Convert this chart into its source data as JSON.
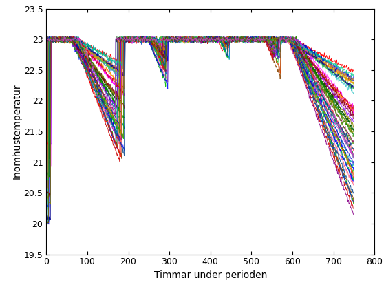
{
  "xlabel": "Timmar under perioden",
  "ylabel": "Inomhustemperatur",
  "xlim": [
    0,
    800
  ],
  "ylim": [
    19.5,
    23.5
  ],
  "xticks": [
    0,
    100,
    200,
    300,
    400,
    500,
    600,
    700,
    800
  ],
  "yticks": [
    19.5,
    20,
    20.5,
    21,
    21.5,
    22,
    22.5,
    23,
    23.5
  ],
  "ytick_labels": [
    "19.5",
    "20",
    "20.5",
    "21",
    "21.5",
    "22",
    "22.5",
    "23",
    "23.5"
  ],
  "T_min": 20.0,
  "T_max": 23.0,
  "heating_on_periods": [
    [
      0,
      70
    ],
    [
      180,
      260
    ],
    [
      285,
      430
    ],
    [
      435,
      545
    ],
    [
      560,
      600
    ]
  ],
  "colors": [
    "#FF0000",
    "#0000FF",
    "#00BB00",
    "#FF00FF",
    "#00AAAA",
    "#FF8800",
    "#8800FF",
    "#006600",
    "#FF4444",
    "#4444FF",
    "#888800",
    "#880088",
    "#008888",
    "#884400",
    "#004488",
    "#880044",
    "#448800",
    "#004400",
    "#FF6688",
    "#88CC00",
    "#CC0000",
    "#0000CC",
    "#00CC44",
    "#CC44CC",
    "#44CCCC",
    "#CC8844",
    "#4488CC",
    "#44CC44",
    "#CC4400",
    "#0044CC"
  ],
  "background_color": "#ffffff",
  "figsize": [
    5.61,
    4.2
  ],
  "dpi": 100
}
